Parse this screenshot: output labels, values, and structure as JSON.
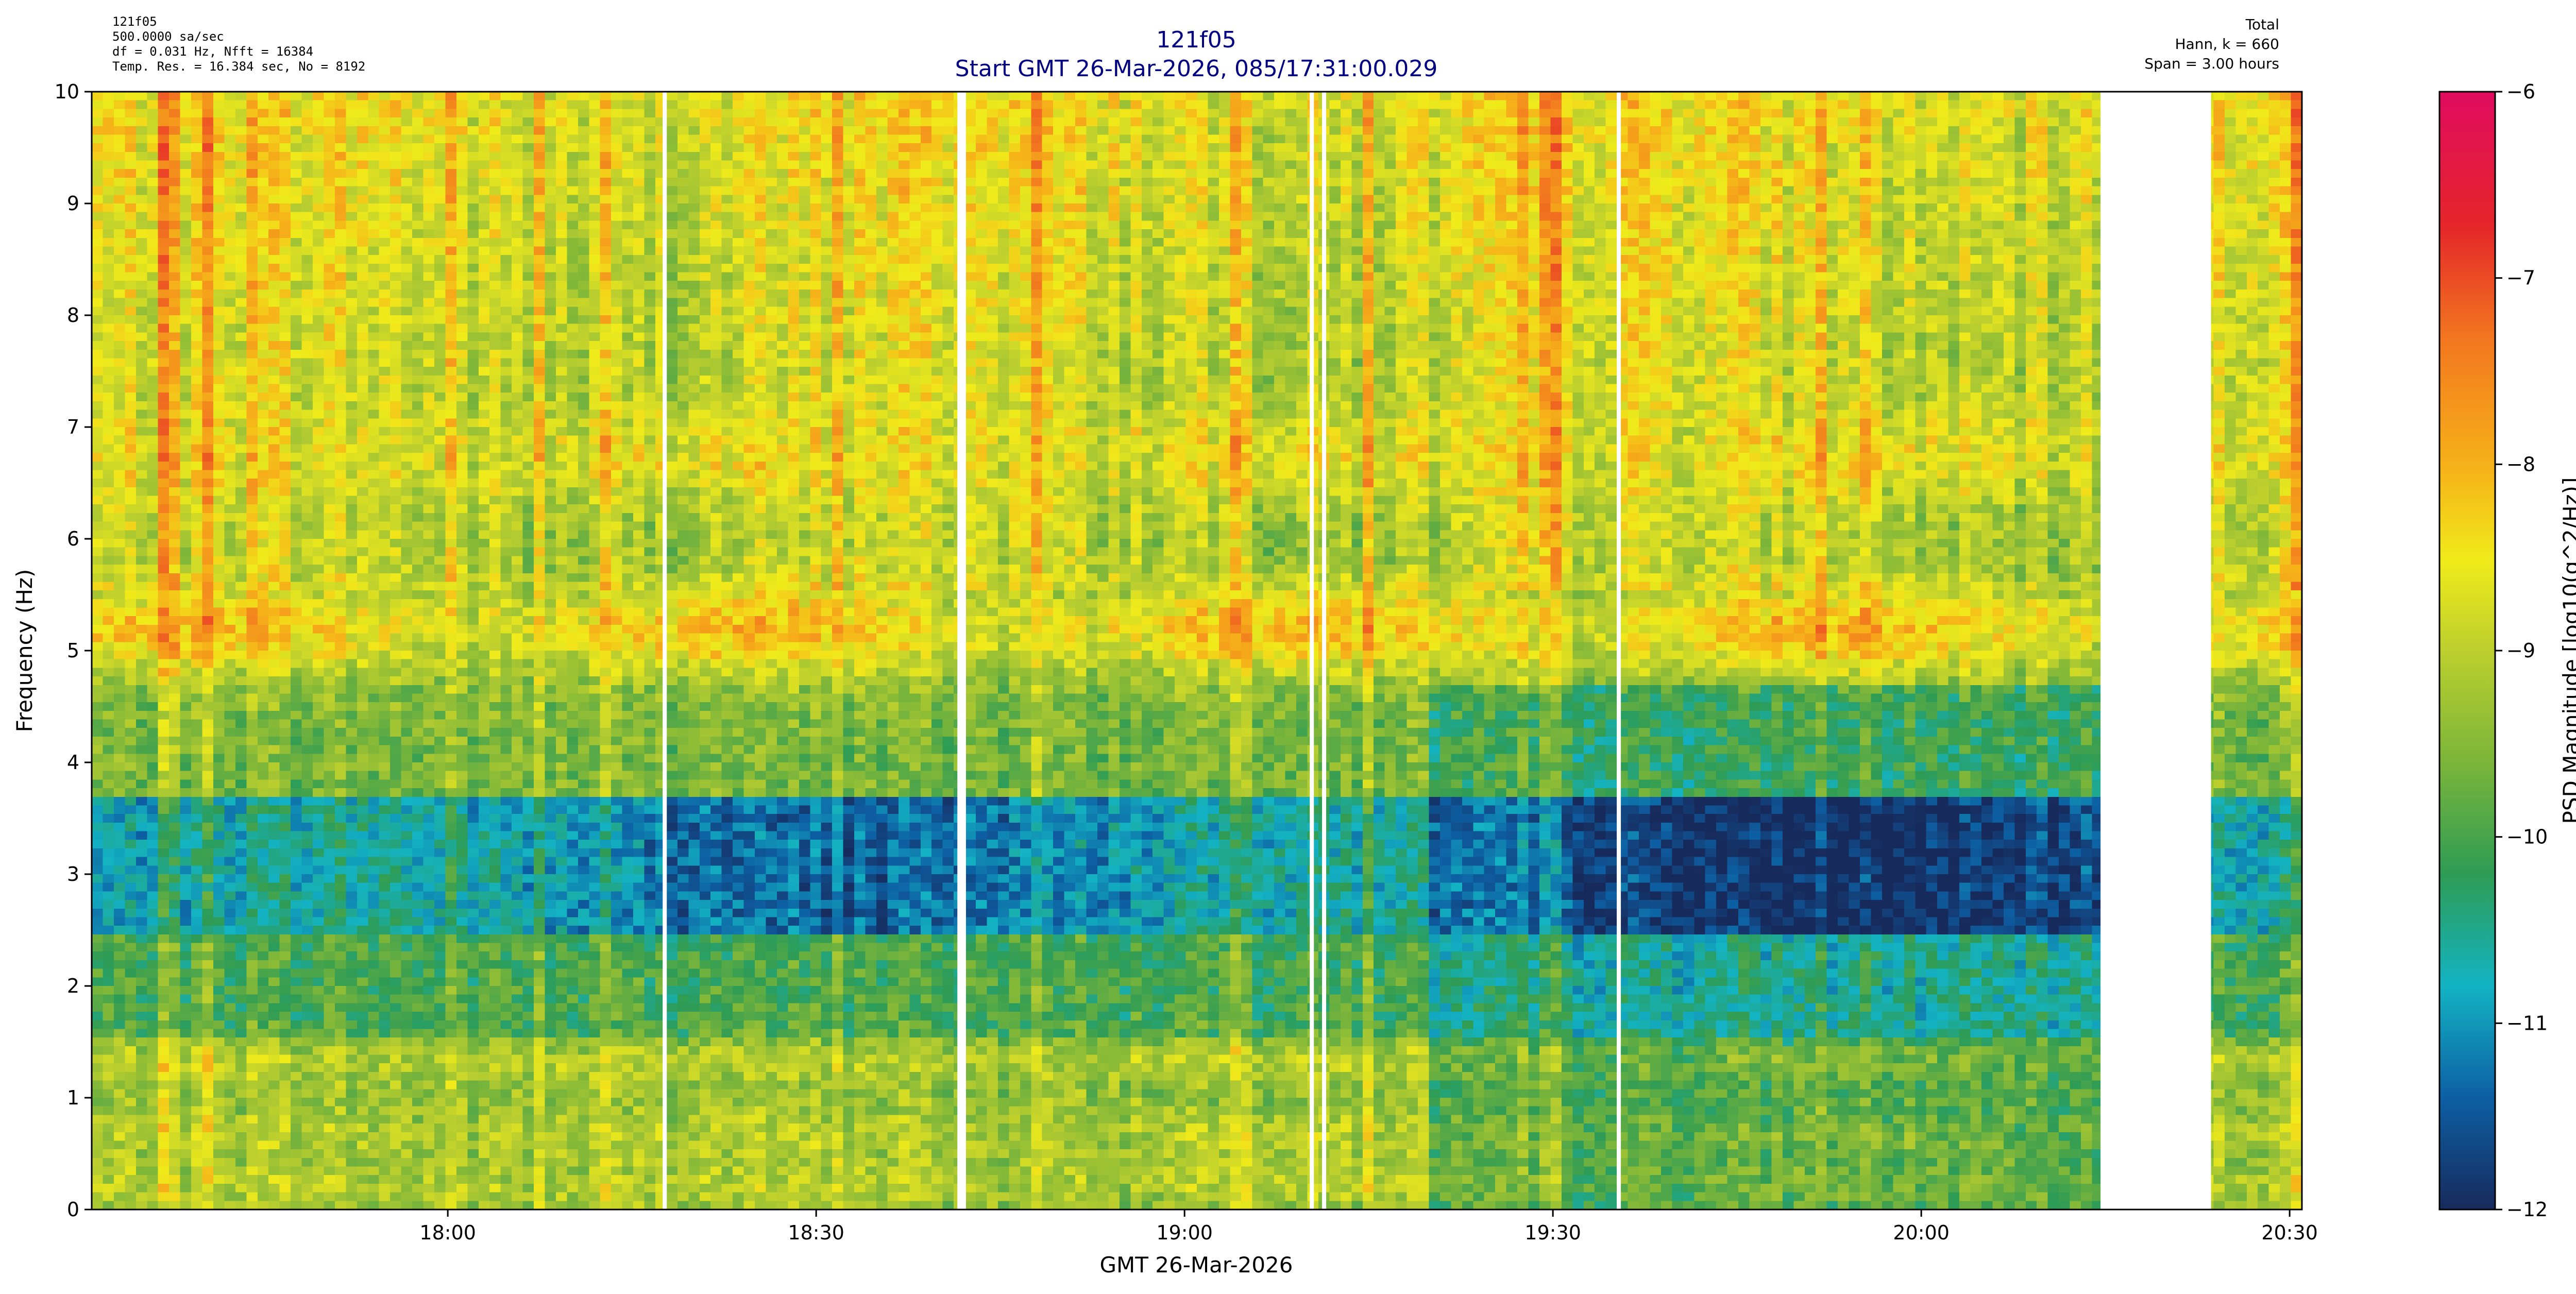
{
  "header": {
    "left_lines": [
      "121f05",
      "500.0000 sa/sec",
      "df = 0.031 Hz,  Nfft = 16384",
      "Temp. Res. = 16.384 sec, No = 8192"
    ],
    "right_lines": [
      "Total",
      "Hann, k = 660",
      "Span = 3.00 hours"
    ]
  },
  "chart_data": {
    "type": "heatmap",
    "title": "121f05",
    "subtitle": "Start GMT 26-Mar-2026, 085/17:31:00.029",
    "xlabel": "GMT 26-Mar-2026",
    "ylabel": "Frequency (Hz)",
    "colorbar_label": "PSD Magnitude [log10(g^2/Hz)]",
    "x_range_minutes_after_1730": [
      1,
      181
    ],
    "x_ticks": [
      {
        "label": "18:00",
        "minutes_after_1730": 30
      },
      {
        "label": "18:30",
        "minutes_after_1730": 60
      },
      {
        "label": "19:00",
        "minutes_after_1730": 90
      },
      {
        "label": "19:30",
        "minutes_after_1730": 120
      },
      {
        "label": "20:00",
        "minutes_after_1730": 150
      },
      {
        "label": "20:30",
        "minutes_after_1730": 180
      }
    ],
    "ylim": [
      0,
      10
    ],
    "y_ticks": [
      "0",
      "1",
      "2",
      "3",
      "4",
      "5",
      "6",
      "7",
      "8",
      "9",
      "10"
    ],
    "clim": [
      -12,
      -6
    ],
    "colorbar_ticks": [
      "-6",
      "-7",
      "-8",
      "-9",
      "-10",
      "-11",
      "-12"
    ],
    "data_gaps_minutes_after_1730": [
      [
        47.5,
        47.8
      ],
      [
        71.5,
        72.2
      ],
      [
        100.2,
        100.5
      ],
      [
        101.2,
        101.5
      ],
      [
        125.2,
        125.5
      ],
      [
        164.6,
        173.6
      ]
    ],
    "persistent_bands_hz": [
      {
        "freq_range": [
          4.95,
          5.45
        ],
        "level_approx": -8.0,
        "note": "strong 5.2 Hz band"
      },
      {
        "freq_range": [
          6.5,
          7.0
        ],
        "level_approx": -8.5
      },
      {
        "freq_range": [
          1.25,
          1.4
        ],
        "level_approx": -9.0
      },
      {
        "freq_range": [
          0.15,
          0.3
        ],
        "level_approx": -9.0
      },
      {
        "freq_range": [
          0.55,
          0.75
        ],
        "level_approx": -9.0
      }
    ],
    "low_level_region_hz": [
      2.5,
      3.7
    ],
    "low_level_approx": -11.0
  },
  "colors": {
    "title": "#000080",
    "colormap": [
      "#172a5c",
      "#0d5fa3",
      "#13b3c3",
      "#2e9c55",
      "#7bb53a",
      "#bccf2e",
      "#f0eb1a",
      "#f6b419",
      "#f2761f",
      "#e5262a",
      "#e00b5f"
    ]
  }
}
